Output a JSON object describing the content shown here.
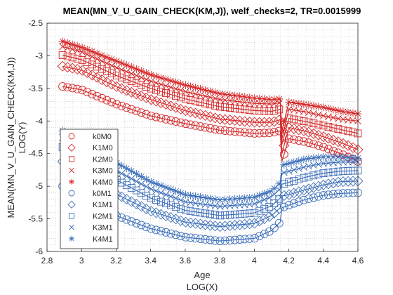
{
  "chart_data": {
    "type": "line",
    "title": "MEAN(MN_V_U_GAIN_CHECK(KM,J)), welf_checks=2, TR=0.0015999",
    "xlabel": "Age",
    "xlabel2": "LOG(X)",
    "ylabel": "MEAN(MN_V_U_GAIN_CHECK(KM,J))",
    "ylabel2": "LOG(Y)",
    "xlim": [
      2.8,
      4.6
    ],
    "ylim": [
      -6,
      -2.5
    ],
    "xticks": [
      2.8,
      3,
      3.2,
      3.4,
      3.6,
      3.8,
      4,
      4.2,
      4.4,
      4.6
    ],
    "yticks": [
      -6,
      -5.5,
      -5,
      -4.5,
      -4,
      -3.5,
      -3,
      -2.5
    ],
    "grid": "on (dotted, minor)",
    "legend_placement": "lower-left",
    "colors": {
      "M0": "#d62728",
      "M1": "#3c6fba"
    },
    "series": [
      {
        "name": "k0M0",
        "color": "#d62728",
        "marker": "circle",
        "points": [
          [
            2.89,
            -3.47
          ],
          [
            3.0,
            -3.52
          ],
          [
            3.2,
            -3.74
          ],
          [
            3.4,
            -3.92
          ],
          [
            3.6,
            -4.04
          ],
          [
            3.8,
            -4.14
          ],
          [
            4.0,
            -4.19
          ],
          [
            4.1,
            -4.18
          ],
          [
            4.15,
            -4.15
          ],
          [
            4.16,
            -4.62
          ],
          [
            4.2,
            -4.27
          ],
          [
            4.3,
            -4.32
          ],
          [
            4.4,
            -4.4
          ],
          [
            4.5,
            -4.5
          ],
          [
            4.6,
            -4.62
          ]
        ]
      },
      {
        "name": "K1M0",
        "color": "#d62728",
        "marker": "diamond",
        "points": [
          [
            2.89,
            -3.16
          ],
          [
            3.0,
            -3.22
          ],
          [
            3.2,
            -3.47
          ],
          [
            3.4,
            -3.67
          ],
          [
            3.6,
            -3.84
          ],
          [
            3.8,
            -3.97
          ],
          [
            4.0,
            -4.02
          ],
          [
            4.1,
            -4.02
          ],
          [
            4.15,
            -3.98
          ],
          [
            4.16,
            -4.5
          ],
          [
            4.2,
            -4.1
          ],
          [
            4.3,
            -4.16
          ],
          [
            4.4,
            -4.24
          ],
          [
            4.5,
            -4.33
          ],
          [
            4.6,
            -4.44
          ]
        ]
      },
      {
        "name": "K2M0",
        "color": "#d62728",
        "marker": "square",
        "points": [
          [
            2.89,
            -2.99
          ],
          [
            3.0,
            -3.06
          ],
          [
            3.2,
            -3.3
          ],
          [
            3.4,
            -3.5
          ],
          [
            3.6,
            -3.66
          ],
          [
            3.8,
            -3.78
          ],
          [
            4.0,
            -3.84
          ],
          [
            4.1,
            -3.85
          ],
          [
            4.15,
            -3.82
          ],
          [
            4.16,
            -4.36
          ],
          [
            4.2,
            -3.96
          ],
          [
            4.3,
            -4.01
          ],
          [
            4.4,
            -4.07
          ],
          [
            4.5,
            -4.13
          ],
          [
            4.6,
            -4.19
          ]
        ]
      },
      {
        "name": "K3M0",
        "color": "#d62728",
        "marker": "x",
        "points": [
          [
            2.89,
            -2.86
          ],
          [
            3.0,
            -2.94
          ],
          [
            3.2,
            -3.18
          ],
          [
            3.4,
            -3.39
          ],
          [
            3.6,
            -3.55
          ],
          [
            3.8,
            -3.67
          ],
          [
            4.0,
            -3.73
          ],
          [
            4.1,
            -3.74
          ],
          [
            4.15,
            -3.72
          ],
          [
            4.16,
            -4.28
          ],
          [
            4.2,
            -3.82
          ],
          [
            4.3,
            -3.86
          ],
          [
            4.4,
            -3.92
          ],
          [
            4.5,
            -3.97
          ],
          [
            4.6,
            -4.0
          ]
        ]
      },
      {
        "name": "K4M0",
        "color": "#d62728",
        "marker": "asterisk",
        "points": [
          [
            2.89,
            -2.78
          ],
          [
            3.0,
            -2.87
          ],
          [
            3.2,
            -3.08
          ],
          [
            3.4,
            -3.29
          ],
          [
            3.6,
            -3.45
          ],
          [
            3.8,
            -3.58
          ],
          [
            4.0,
            -3.65
          ],
          [
            4.1,
            -3.67
          ],
          [
            4.15,
            -3.66
          ],
          [
            4.16,
            -4.15
          ],
          [
            4.2,
            -3.71
          ],
          [
            4.3,
            -3.75
          ],
          [
            4.4,
            -3.79
          ],
          [
            4.5,
            -3.85
          ],
          [
            4.6,
            -3.89
          ]
        ]
      },
      {
        "name": "k0M1",
        "color": "#3c6fba",
        "marker": "circle",
        "points": [
          [
            2.89,
            -5.0
          ],
          [
            3.0,
            -5.15
          ],
          [
            3.2,
            -5.45
          ],
          [
            3.4,
            -5.65
          ],
          [
            3.6,
            -5.78
          ],
          [
            3.8,
            -5.84
          ],
          [
            4.0,
            -5.8
          ],
          [
            4.1,
            -5.68
          ],
          [
            4.15,
            -5.55
          ],
          [
            4.16,
            -5.33
          ],
          [
            4.2,
            -5.29
          ],
          [
            4.3,
            -5.2
          ],
          [
            4.4,
            -5.14
          ],
          [
            4.5,
            -5.11
          ],
          [
            4.6,
            -5.1
          ]
        ]
      },
      {
        "name": "K1M1",
        "color": "#3c6fba",
        "marker": "diamond",
        "points": [
          [
            2.89,
            -4.62
          ],
          [
            3.0,
            -4.8
          ],
          [
            3.2,
            -5.12
          ],
          [
            3.4,
            -5.38
          ],
          [
            3.6,
            -5.55
          ],
          [
            3.8,
            -5.62
          ],
          [
            4.0,
            -5.57
          ],
          [
            4.1,
            -5.45
          ],
          [
            4.15,
            -5.33
          ],
          [
            4.16,
            -5.15
          ],
          [
            4.2,
            -5.13
          ],
          [
            4.3,
            -5.05
          ],
          [
            4.4,
            -4.98
          ],
          [
            4.5,
            -4.93
          ],
          [
            4.6,
            -4.92
          ]
        ]
      },
      {
        "name": "K2M1",
        "color": "#3c6fba",
        "marker": "square",
        "points": [
          [
            2.89,
            -4.4
          ],
          [
            3.0,
            -4.56
          ],
          [
            3.2,
            -4.9
          ],
          [
            3.4,
            -5.18
          ],
          [
            3.6,
            -5.37
          ],
          [
            3.8,
            -5.45
          ],
          [
            4.0,
            -5.41
          ],
          [
            4.1,
            -5.3
          ],
          [
            4.15,
            -5.18
          ],
          [
            4.16,
            -4.97
          ],
          [
            4.2,
            -4.94
          ],
          [
            4.3,
            -4.86
          ],
          [
            4.4,
            -4.8
          ],
          [
            4.5,
            -4.77
          ],
          [
            4.6,
            -4.76
          ]
        ]
      },
      {
        "name": "K3M1",
        "color": "#3c6fba",
        "marker": "x",
        "points": [
          [
            2.89,
            -4.25
          ],
          [
            3.0,
            -4.4
          ],
          [
            3.2,
            -4.76
          ],
          [
            3.4,
            -5.04
          ],
          [
            3.6,
            -5.24
          ],
          [
            3.8,
            -5.31
          ],
          [
            4.0,
            -5.27
          ],
          [
            4.1,
            -5.16
          ],
          [
            4.15,
            -5.04
          ],
          [
            4.16,
            -4.8
          ],
          [
            4.2,
            -4.77
          ],
          [
            4.3,
            -4.7
          ],
          [
            4.4,
            -4.65
          ],
          [
            4.5,
            -4.63
          ],
          [
            4.6,
            -4.63
          ]
        ]
      },
      {
        "name": "K4M1",
        "color": "#3c6fba",
        "marker": "asterisk",
        "points": [
          [
            2.89,
            -4.15
          ],
          [
            3.0,
            -4.28
          ],
          [
            3.2,
            -4.64
          ],
          [
            3.4,
            -4.93
          ],
          [
            3.6,
            -5.13
          ],
          [
            3.8,
            -5.21
          ],
          [
            4.0,
            -5.17
          ],
          [
            4.1,
            -5.07
          ],
          [
            4.15,
            -4.95
          ],
          [
            4.16,
            -4.68
          ],
          [
            4.2,
            -4.65
          ],
          [
            4.3,
            -4.58
          ],
          [
            4.4,
            -4.55
          ],
          [
            4.5,
            -4.55
          ],
          [
            4.6,
            -4.57
          ]
        ]
      }
    ]
  }
}
